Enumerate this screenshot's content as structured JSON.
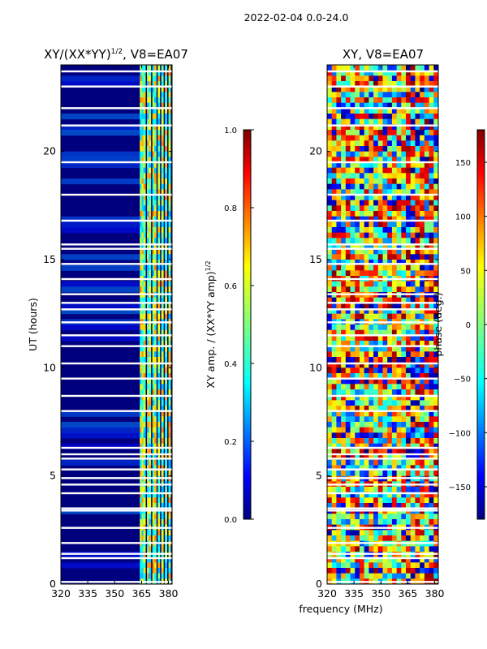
{
  "suptitle": "2022-02-04 0.0-24.0",
  "colors": {
    "jet": [
      "#00007f",
      "#0000ff",
      "#007fff",
      "#00ffff",
      "#7fff7f",
      "#ffff00",
      "#ff7f00",
      "#ff0000",
      "#7f0000"
    ]
  },
  "chart_data": [
    {
      "type": "heatmap",
      "title_main": "XY/(XX*YY)",
      "title_sup": "1/2",
      "title_tail": ", V8=EA07",
      "ylabel": "UT (hours)",
      "xlabel": "",
      "xlim": [
        320,
        382
      ],
      "ylim": [
        0,
        24
      ],
      "xticks": [
        "320",
        "335",
        "350",
        "365",
        "380"
      ],
      "xtick_values": [
        320,
        335,
        350,
        365,
        380
      ],
      "yticks": [
        "0",
        "5",
        "10",
        "15",
        "20"
      ],
      "ytick_values": [
        0,
        5,
        10,
        15,
        20
      ],
      "bright_channels_mhz": [
        364,
        365,
        366,
        368,
        369,
        371,
        372,
        374,
        376,
        378,
        380
      ],
      "blank_rows_hours": [
        0.1,
        1.2,
        1.4,
        1.9,
        2.6,
        3.4,
        3.5,
        4.2,
        4.6,
        4.9,
        5.3,
        5.8,
        6.0,
        6.3,
        8.0,
        8.7,
        9.5,
        10.2,
        11.0,
        11.5,
        12.1,
        12.7,
        13.0,
        13.4,
        14.1,
        14.8,
        15.5,
        15.7,
        16.8,
        18.0,
        19.5,
        21.2,
        22.0,
        23.0,
        23.7
      ],
      "colorbar": {
        "label_main": "XY amp. / (XX*YY amp)",
        "label_sup": "1/2",
        "ticks": [
          "0.0",
          "0.2",
          "0.4",
          "0.6",
          "0.8",
          "1.0"
        ],
        "tick_values": [
          0,
          0.2,
          0.4,
          0.6,
          0.8,
          1.0
        ],
        "range": [
          0,
          1
        ]
      }
    },
    {
      "type": "heatmap",
      "title": "XY, V8=EA07",
      "xlabel": "frequency (MHz)",
      "xlim": [
        320,
        382
      ],
      "ylim": [
        0,
        24
      ],
      "xticks": [
        "320",
        "335",
        "350",
        "365",
        "380"
      ],
      "xtick_values": [
        320,
        335,
        350,
        365,
        380
      ],
      "yticks": [
        "0",
        "5",
        "10",
        "15",
        "20"
      ],
      "ytick_values": [
        0,
        5,
        10,
        15,
        20
      ],
      "colorbar": {
        "label": "phase (deg.)",
        "ticks": [
          "−150",
          "−100",
          "−50",
          "0",
          "50",
          "100",
          "150"
        ],
        "tick_values": [
          -150,
          -100,
          -50,
          0,
          50,
          100,
          150
        ],
        "range": [
          -180,
          180
        ]
      }
    }
  ]
}
